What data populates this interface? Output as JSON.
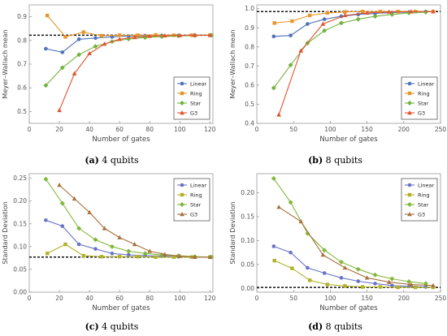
{
  "captions": [
    {
      "letter": "(a)",
      "text": "4 qubits"
    },
    {
      "letter": "(b)",
      "text": "8 qubits"
    },
    {
      "letter": "(c)",
      "text": "4 qubits"
    },
    {
      "letter": "(d)",
      "text": "8 qubits"
    }
  ],
  "chart_data": [
    {
      "type": "line",
      "xlabel": "Number of gates",
      "ylabel": "Meyer–Wallach mean",
      "xlim": [
        0,
        122
      ],
      "ylim": [
        0.45,
        0.95
      ],
      "xticks": [
        0,
        20,
        40,
        60,
        80,
        100,
        120
      ],
      "yticks": [
        0.5,
        0.6,
        0.7,
        0.8,
        0.9
      ],
      "ytick_format": 1,
      "legend": "lower-right",
      "reference_line": 0.822,
      "series": [
        {
          "name": "Linear",
          "color": "#4e72b8",
          "marker": "circle",
          "x": [
            11,
            22,
            33,
            44,
            55,
            66,
            77,
            88,
            99,
            110,
            121
          ],
          "y": [
            0.765,
            0.75,
            0.805,
            0.81,
            0.815,
            0.818,
            0.82,
            0.821,
            0.821,
            0.822,
            0.822
          ]
        },
        {
          "name": "Ring",
          "color": "#e8952b",
          "marker": "square",
          "x": [
            12,
            24,
            36,
            48,
            60,
            72,
            84,
            96,
            108,
            120
          ],
          "y": [
            0.905,
            0.815,
            0.835,
            0.82,
            0.822,
            0.822,
            0.823,
            0.822,
            0.822,
            0.822
          ]
        },
        {
          "name": "Star",
          "color": "#74b33e",
          "marker": "diamond",
          "x": [
            11,
            22,
            33,
            44,
            55,
            66,
            77,
            88,
            99,
            110,
            121
          ],
          "y": [
            0.61,
            0.685,
            0.74,
            0.775,
            0.795,
            0.806,
            0.812,
            0.816,
            0.819,
            0.821,
            0.822
          ]
        },
        {
          "name": "G3",
          "color": "#e0532e",
          "marker": "triangle",
          "x": [
            20,
            30,
            40,
            50,
            60,
            70,
            80,
            90,
            100,
            110,
            120
          ],
          "y": [
            0.505,
            0.66,
            0.745,
            0.785,
            0.805,
            0.813,
            0.818,
            0.82,
            0.821,
            0.822,
            0.822
          ]
        }
      ]
    },
    {
      "type": "line",
      "xlabel": "Number of gates",
      "ylabel": "Meyer–Wallach mean",
      "xlim": [
        0,
        250
      ],
      "ylim": [
        0.4,
        1.02
      ],
      "xticks": [
        0,
        50,
        100,
        150,
        200,
        250
      ],
      "yticks": [
        0.4,
        0.5,
        0.6,
        0.7,
        0.8,
        0.9,
        1.0
      ],
      "ytick_format": 1,
      "legend": "lower-right",
      "reference_line": 0.985,
      "series": [
        {
          "name": "Linear",
          "color": "#4e72b8",
          "marker": "circle",
          "x": [
            23,
            46,
            69,
            92,
            115,
            138,
            161,
            184,
            207,
            230
          ],
          "y": [
            0.855,
            0.86,
            0.92,
            0.945,
            0.96,
            0.97,
            0.975,
            0.98,
            0.982,
            0.985
          ]
        },
        {
          "name": "Ring",
          "color": "#e8952b",
          "marker": "square",
          "x": [
            24,
            48,
            72,
            96,
            120,
            144,
            168,
            192,
            216,
            240
          ],
          "y": [
            0.925,
            0.935,
            0.965,
            0.978,
            0.983,
            0.985,
            0.985,
            0.985,
            0.985,
            0.985
          ]
        },
        {
          "name": "Star",
          "color": "#74b33e",
          "marker": "diamond",
          "x": [
            23,
            46,
            69,
            92,
            115,
            138,
            161,
            184,
            207,
            230
          ],
          "y": [
            0.585,
            0.705,
            0.82,
            0.885,
            0.925,
            0.945,
            0.96,
            0.97,
            0.978,
            0.982
          ]
        },
        {
          "name": "G3",
          "color": "#e0532e",
          "marker": "triangle",
          "x": [
            30,
            60,
            90,
            120,
            150,
            180,
            210,
            240
          ],
          "y": [
            0.445,
            0.78,
            0.92,
            0.965,
            0.978,
            0.983,
            0.985,
            0.985
          ]
        }
      ]
    },
    {
      "type": "line",
      "xlabel": "Number of gates",
      "ylabel": "Standard Deviation",
      "xlim": [
        0,
        122
      ],
      "ylim": [
        0,
        0.26
      ],
      "xticks": [
        0,
        20,
        40,
        60,
        80,
        100,
        120
      ],
      "yticks": [
        0.0,
        0.05,
        0.1,
        0.15,
        0.2,
        0.25
      ],
      "ytick_format": 2,
      "legend": "top-right",
      "reference_line": 0.077,
      "series": [
        {
          "name": "Linear",
          "color": "#6a74c4",
          "marker": "circle",
          "x": [
            11,
            22,
            33,
            44,
            55,
            66,
            77,
            88,
            99,
            110,
            121
          ],
          "y": [
            0.158,
            0.145,
            0.105,
            0.095,
            0.085,
            0.082,
            0.08,
            0.079,
            0.078,
            0.077,
            0.077
          ]
        },
        {
          "name": "Ring",
          "color": "#b2b22a",
          "marker": "square",
          "x": [
            12,
            24,
            36,
            48,
            60,
            72,
            84,
            96,
            108,
            120
          ],
          "y": [
            0.085,
            0.105,
            0.08,
            0.078,
            0.078,
            0.078,
            0.077,
            0.077,
            0.077,
            0.077
          ]
        },
        {
          "name": "Star",
          "color": "#82b83a",
          "marker": "diamond",
          "x": [
            11,
            22,
            33,
            44,
            55,
            66,
            77,
            88,
            99,
            110,
            121
          ],
          "y": [
            0.248,
            0.195,
            0.14,
            0.115,
            0.1,
            0.09,
            0.085,
            0.082,
            0.08,
            0.078,
            0.077
          ]
        },
        {
          "name": "G3",
          "color": "#a8703c",
          "marker": "triangle",
          "x": [
            20,
            30,
            40,
            50,
            60,
            70,
            80,
            90,
            100,
            110,
            120
          ],
          "y": [
            0.235,
            0.205,
            0.175,
            0.14,
            0.12,
            0.105,
            0.09,
            0.083,
            0.079,
            0.077,
            0.077
          ]
        }
      ]
    },
    {
      "type": "line",
      "xlabel": "Number of gates",
      "ylabel": "Standard Deviation",
      "xlim": [
        0,
        250
      ],
      "ylim": [
        -0.008,
        0.24
      ],
      "xticks": [
        0,
        50,
        100,
        150,
        200,
        250
      ],
      "yticks": [
        0.0,
        0.05,
        0.1,
        0.15,
        0.2
      ],
      "ytick_format": 2,
      "legend": "top-right",
      "reference_line": 0.002,
      "series": [
        {
          "name": "Linear",
          "color": "#6a74c4",
          "marker": "circle",
          "x": [
            23,
            46,
            69,
            92,
            115,
            138,
            161,
            184,
            207,
            230
          ],
          "y": [
            0.088,
            0.075,
            0.043,
            0.032,
            0.022,
            0.015,
            0.01,
            0.006,
            0.004,
            0.003
          ]
        },
        {
          "name": "Ring",
          "color": "#b2b22a",
          "marker": "square",
          "x": [
            24,
            48,
            72,
            96,
            120,
            144,
            168,
            192,
            216,
            240
          ],
          "y": [
            0.058,
            0.042,
            0.017,
            0.008,
            0.005,
            0.003,
            0.003,
            0.002,
            0.002,
            0.002
          ]
        },
        {
          "name": "Star",
          "color": "#82b83a",
          "marker": "diamond",
          "x": [
            23,
            46,
            69,
            92,
            115,
            138,
            161,
            184,
            207,
            230
          ],
          "y": [
            0.23,
            0.18,
            0.115,
            0.08,
            0.055,
            0.04,
            0.028,
            0.02,
            0.014,
            0.01
          ]
        },
        {
          "name": "G3",
          "color": "#a8703c",
          "marker": "triangle",
          "x": [
            30,
            60,
            90,
            120,
            150,
            180,
            210,
            240
          ],
          "y": [
            0.17,
            0.14,
            0.07,
            0.043,
            0.022,
            0.013,
            0.008,
            0.006
          ]
        }
      ]
    }
  ]
}
